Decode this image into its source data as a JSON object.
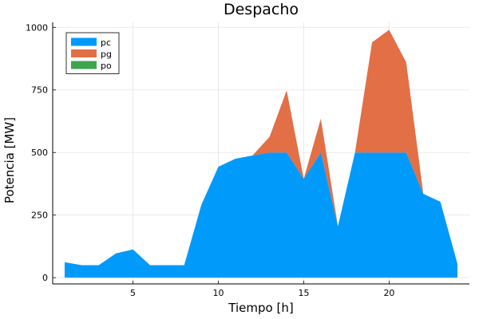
{
  "chart_data": {
    "type": "area",
    "stacked": true,
    "title": "Despacho",
    "xlabel": "Tiempo [h]",
    "ylabel": "Potencia [MW]",
    "xlim": [
      0.3,
      24.7
    ],
    "ylim": [
      -25,
      1020
    ],
    "xticks": [
      5,
      10,
      15,
      20
    ],
    "yticks": [
      0,
      250,
      500,
      750,
      1000
    ],
    "grid": true,
    "legend_position": "top-left",
    "x": [
      1,
      2,
      3,
      4,
      5,
      6,
      7,
      8,
      9,
      10,
      11,
      12,
      13,
      14,
      15,
      16,
      17,
      18,
      19,
      20,
      21,
      22,
      23,
      24
    ],
    "series": [
      {
        "name": "pc",
        "color": "#009AFA",
        "values": [
          62,
          50,
          50,
          97,
          113,
          50,
          50,
          50,
          290,
          443,
          475,
          488,
          500,
          500,
          395,
          500,
          205,
          500,
          500,
          500,
          500,
          335,
          303,
          55
        ]
      },
      {
        "name": "pg",
        "color": "#E26F46",
        "values": [
          0,
          0,
          0,
          0,
          0,
          0,
          0,
          0,
          0,
          0,
          0,
          0,
          63,
          248,
          0,
          135,
          0,
          0,
          440,
          490,
          360,
          0,
          0,
          0
        ]
      },
      {
        "name": "po",
        "color": "#3EA44E",
        "values": [
          0,
          0,
          0,
          0,
          0,
          0,
          0,
          0,
          0,
          0,
          0,
          0,
          0,
          0,
          0,
          0,
          0,
          0,
          0,
          0,
          0,
          0,
          0,
          0
        ]
      }
    ]
  }
}
